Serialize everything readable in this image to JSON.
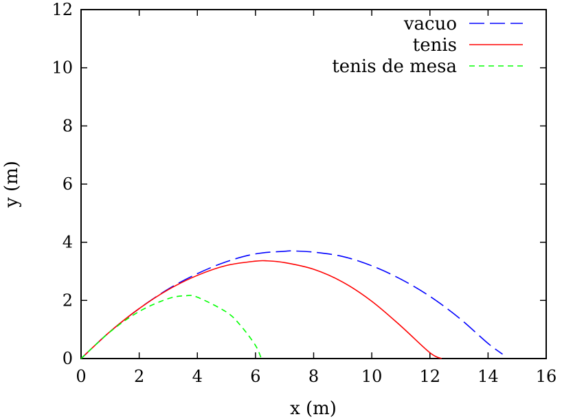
{
  "chart_data": {
    "type": "line",
    "title": "",
    "xlabel": "x (m)",
    "ylabel": "y (m)",
    "xlim": [
      0,
      16
    ],
    "ylim": [
      0,
      12
    ],
    "xticks": [
      "0",
      "2",
      "4",
      "6",
      "8",
      "10",
      "12",
      "14",
      "16"
    ],
    "yticks": [
      "0",
      "2",
      "4",
      "6",
      "8",
      "10",
      "12"
    ],
    "grid": false,
    "legend_position": "top-right",
    "series": [
      {
        "name": "vacuo",
        "color": "#0000ff",
        "dash": "long-dash",
        "x": [
          0,
          1,
          2,
          3,
          4,
          5,
          6,
          7,
          7.3,
          8,
          9,
          10,
          11,
          12,
          13,
          14,
          14.5
        ],
        "y": [
          0,
          0.93,
          1.72,
          2.39,
          2.92,
          3.33,
          3.6,
          3.69,
          3.7,
          3.66,
          3.51,
          3.19,
          2.73,
          2.14,
          1.4,
          0.52,
          0.15
        ]
      },
      {
        "name": "tenis",
        "color": "#ff0000",
        "dash": "solid",
        "x": [
          0,
          1,
          2,
          3,
          4,
          5,
          6,
          6.4,
          7,
          8,
          9,
          10,
          11,
          12,
          12.4
        ],
        "y": [
          0,
          0.93,
          1.72,
          2.37,
          2.86,
          3.2,
          3.35,
          3.36,
          3.3,
          3.07,
          2.63,
          1.97,
          1.12,
          0.2,
          0
        ]
      },
      {
        "name": "tenis de mesa",
        "color": "#00ff00",
        "dash": "short-dash",
        "x": [
          0,
          1,
          2,
          3,
          3.6,
          4,
          5,
          5.5,
          6,
          6.2
        ],
        "y": [
          0,
          0.92,
          1.62,
          2.06,
          2.16,
          2.11,
          1.6,
          1.12,
          0.45,
          0
        ]
      }
    ]
  }
}
